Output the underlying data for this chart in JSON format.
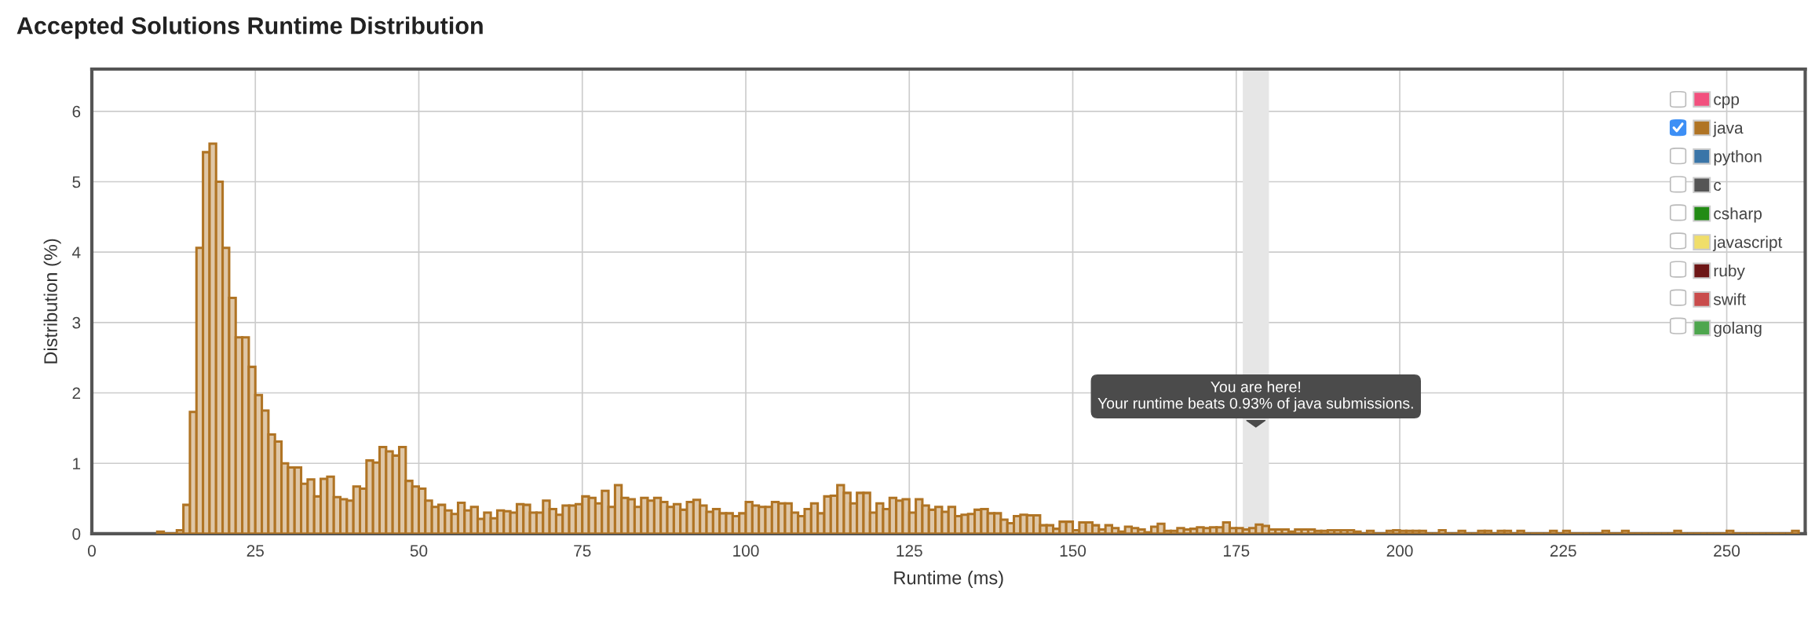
{
  "chart_data": {
    "type": "histogram",
    "title": "Accepted Solutions Runtime Distribution",
    "xlabel": "Runtime (ms)",
    "ylabel": "Distribution (%)",
    "bins": [
      10,
      11,
      12,
      13,
      14,
      15,
      16,
      17,
      18,
      19,
      20,
      21,
      22,
      23,
      24,
      25,
      26,
      27,
      28,
      29,
      30,
      31,
      32,
      33,
      34,
      35,
      36,
      37,
      38,
      39,
      40,
      41,
      42,
      43,
      44,
      45,
      46,
      47,
      48,
      49,
      50,
      51,
      52,
      53,
      54,
      55,
      56,
      57,
      58,
      59,
      60,
      61,
      62,
      63,
      64,
      65,
      66,
      67,
      68,
      69,
      70,
      71,
      72,
      73,
      74,
      75,
      76,
      77,
      78,
      79,
      80,
      81,
      82,
      83,
      84,
      85,
      86,
      87,
      88,
      89,
      90,
      91,
      92,
      93,
      94,
      95,
      96,
      97,
      98,
      99,
      100,
      101,
      102,
      103,
      104,
      105,
      106,
      107,
      108,
      109,
      110,
      111,
      112,
      113,
      114,
      115,
      116,
      117,
      118,
      119,
      120,
      121,
      122,
      123,
      124,
      125,
      126,
      127,
      128,
      129,
      130,
      131,
      132,
      133,
      134,
      135,
      136,
      137,
      138,
      139,
      140,
      141,
      142,
      143,
      144,
      145,
      146,
      147,
      148,
      149,
      150,
      151,
      152,
      153,
      154,
      155,
      156,
      157,
      158,
      159,
      160,
      161,
      162,
      163,
      164,
      165,
      166,
      167,
      168,
      169,
      170,
      171,
      172,
      173,
      174,
      175,
      176,
      177,
      178,
      179,
      180,
      181,
      182,
      183,
      184,
      185,
      186,
      187,
      188,
      189,
      190,
      191,
      192,
      193,
      194,
      195,
      196,
      197,
      198,
      199,
      200,
      201,
      202,
      203,
      204,
      205,
      206,
      207,
      208,
      209,
      210,
      211,
      212,
      213,
      214,
      215,
      216,
      217,
      218,
      219,
      220,
      221,
      222,
      223,
      224,
      225,
      226,
      227,
      228,
      229,
      230,
      231,
      232,
      233,
      234,
      235,
      236,
      237,
      238,
      239,
      240,
      241,
      242,
      243,
      244,
      245,
      246,
      247,
      248,
      249,
      250,
      251,
      252,
      253,
      254,
      255,
      256,
      257,
      258,
      259,
      260,
      261
    ],
    "series": [
      {
        "name": "cpp",
        "color": "#f2507e",
        "type": "bar"
      },
      {
        "name": "java",
        "color": "#b07424",
        "values": [
          0.03,
          0,
          0,
          0.05,
          0.41,
          1.73,
          4.06,
          5.42,
          5.54,
          5.0,
          4.06,
          3.35,
          2.79,
          2.79,
          2.37,
          1.97,
          1.75,
          1.41,
          1.31,
          1.0,
          0.94,
          0.94,
          0.71,
          0.77,
          0.53,
          0.78,
          0.81,
          0.52,
          0.49,
          0.47,
          0.67,
          0.64,
          1.04,
          1.01,
          1.23,
          1.17,
          1.11,
          1.23,
          0.75,
          0.67,
          0.64,
          0.47,
          0.38,
          0.41,
          0.33,
          0.28,
          0.44,
          0.33,
          0.38,
          0.21,
          0.3,
          0.22,
          0.33,
          0.32,
          0.3,
          0.42,
          0.41,
          0.3,
          0.3,
          0.47,
          0.35,
          0.27,
          0.4,
          0.4,
          0.42,
          0.53,
          0.51,
          0.43,
          0.61,
          0.38,
          0.69,
          0.51,
          0.49,
          0.38,
          0.51,
          0.47,
          0.51,
          0.45,
          0.38,
          0.42,
          0.34,
          0.45,
          0.48,
          0.4,
          0.31,
          0.35,
          0.29,
          0.29,
          0.25,
          0.29,
          0.45,
          0.4,
          0.38,
          0.38,
          0.45,
          0.43,
          0.43,
          0.3,
          0.25,
          0.35,
          0.43,
          0.29,
          0.53,
          0.54,
          0.69,
          0.58,
          0.43,
          0.58,
          0.58,
          0.3,
          0.43,
          0.35,
          0.51,
          0.47,
          0.49,
          0.3,
          0.49,
          0.4,
          0.34,
          0.38,
          0.31,
          0.38,
          0.25,
          0.27,
          0.28,
          0.34,
          0.35,
          0.29,
          0.29,
          0.2,
          0.15,
          0.25,
          0.27,
          0.26,
          0.26,
          0.12,
          0.12,
          0.07,
          0.17,
          0.17,
          0.05,
          0.16,
          0.16,
          0.12,
          0.06,
          0.12,
          0.08,
          0.03,
          0.1,
          0.08,
          0.06,
          0.02,
          0.1,
          0.14,
          0.04,
          0.04,
          0.08,
          0.06,
          0.07,
          0.09,
          0.08,
          0.09,
          0.09,
          0.16,
          0.08,
          0.08,
          0.06,
          0.08,
          0.13,
          0.11,
          0.06,
          0.06,
          0.06,
          0.03,
          0.06,
          0.06,
          0.06,
          0.04,
          0.04,
          0.05,
          0.05,
          0.05,
          0.05,
          0.03,
          0,
          0.04,
          0,
          0,
          0.04,
          0.05,
          0.04,
          0.04,
          0.04,
          0.04,
          0,
          0,
          0.05,
          0,
          0,
          0.04,
          0,
          0,
          0.04,
          0.04,
          0,
          0.04,
          0.04,
          0,
          0.04,
          0,
          0,
          0,
          0,
          0.04,
          0,
          0.04,
          0,
          0,
          0,
          0,
          0,
          0.04,
          0,
          0,
          0.04,
          0,
          0,
          0,
          0,
          0,
          0,
          0,
          0.04,
          0,
          0,
          0,
          0,
          0,
          0,
          0,
          0.04,
          0,
          0,
          0,
          0,
          0,
          0,
          0,
          0,
          0,
          0.04
        ]
      },
      {
        "name": "python",
        "color": "#3a75a8",
        "type": "bar"
      },
      {
        "name": "c",
        "color": "#555555",
        "type": "bar"
      },
      {
        "name": "csharp",
        "color": "#228b14",
        "type": "bar"
      },
      {
        "name": "javascript",
        "color": "#f0de6a",
        "type": "bar"
      },
      {
        "name": "ruby",
        "color": "#6d1616",
        "type": "bar"
      },
      {
        "name": "swift",
        "color": "#c94c4c",
        "type": "bar"
      },
      {
        "name": "golang",
        "color": "#4ea64e",
        "type": "bar"
      }
    ],
    "xlim": [
      0,
      262
    ],
    "ylim": [
      0,
      6.6
    ],
    "xticks": [
      0,
      25,
      50,
      75,
      100,
      125,
      150,
      175,
      200,
      225,
      250
    ],
    "yticks": [
      0,
      1,
      2,
      3,
      4,
      5,
      6
    ],
    "bands": [
      {
        "axis": "x",
        "from": 176,
        "to": 180,
        "color": "#e6e6e6"
      }
    ],
    "annotations": [
      "You are here!\nYour runtime beats 0.93% of java submissions."
    ],
    "grid": true,
    "legend": "top right"
  }
}
